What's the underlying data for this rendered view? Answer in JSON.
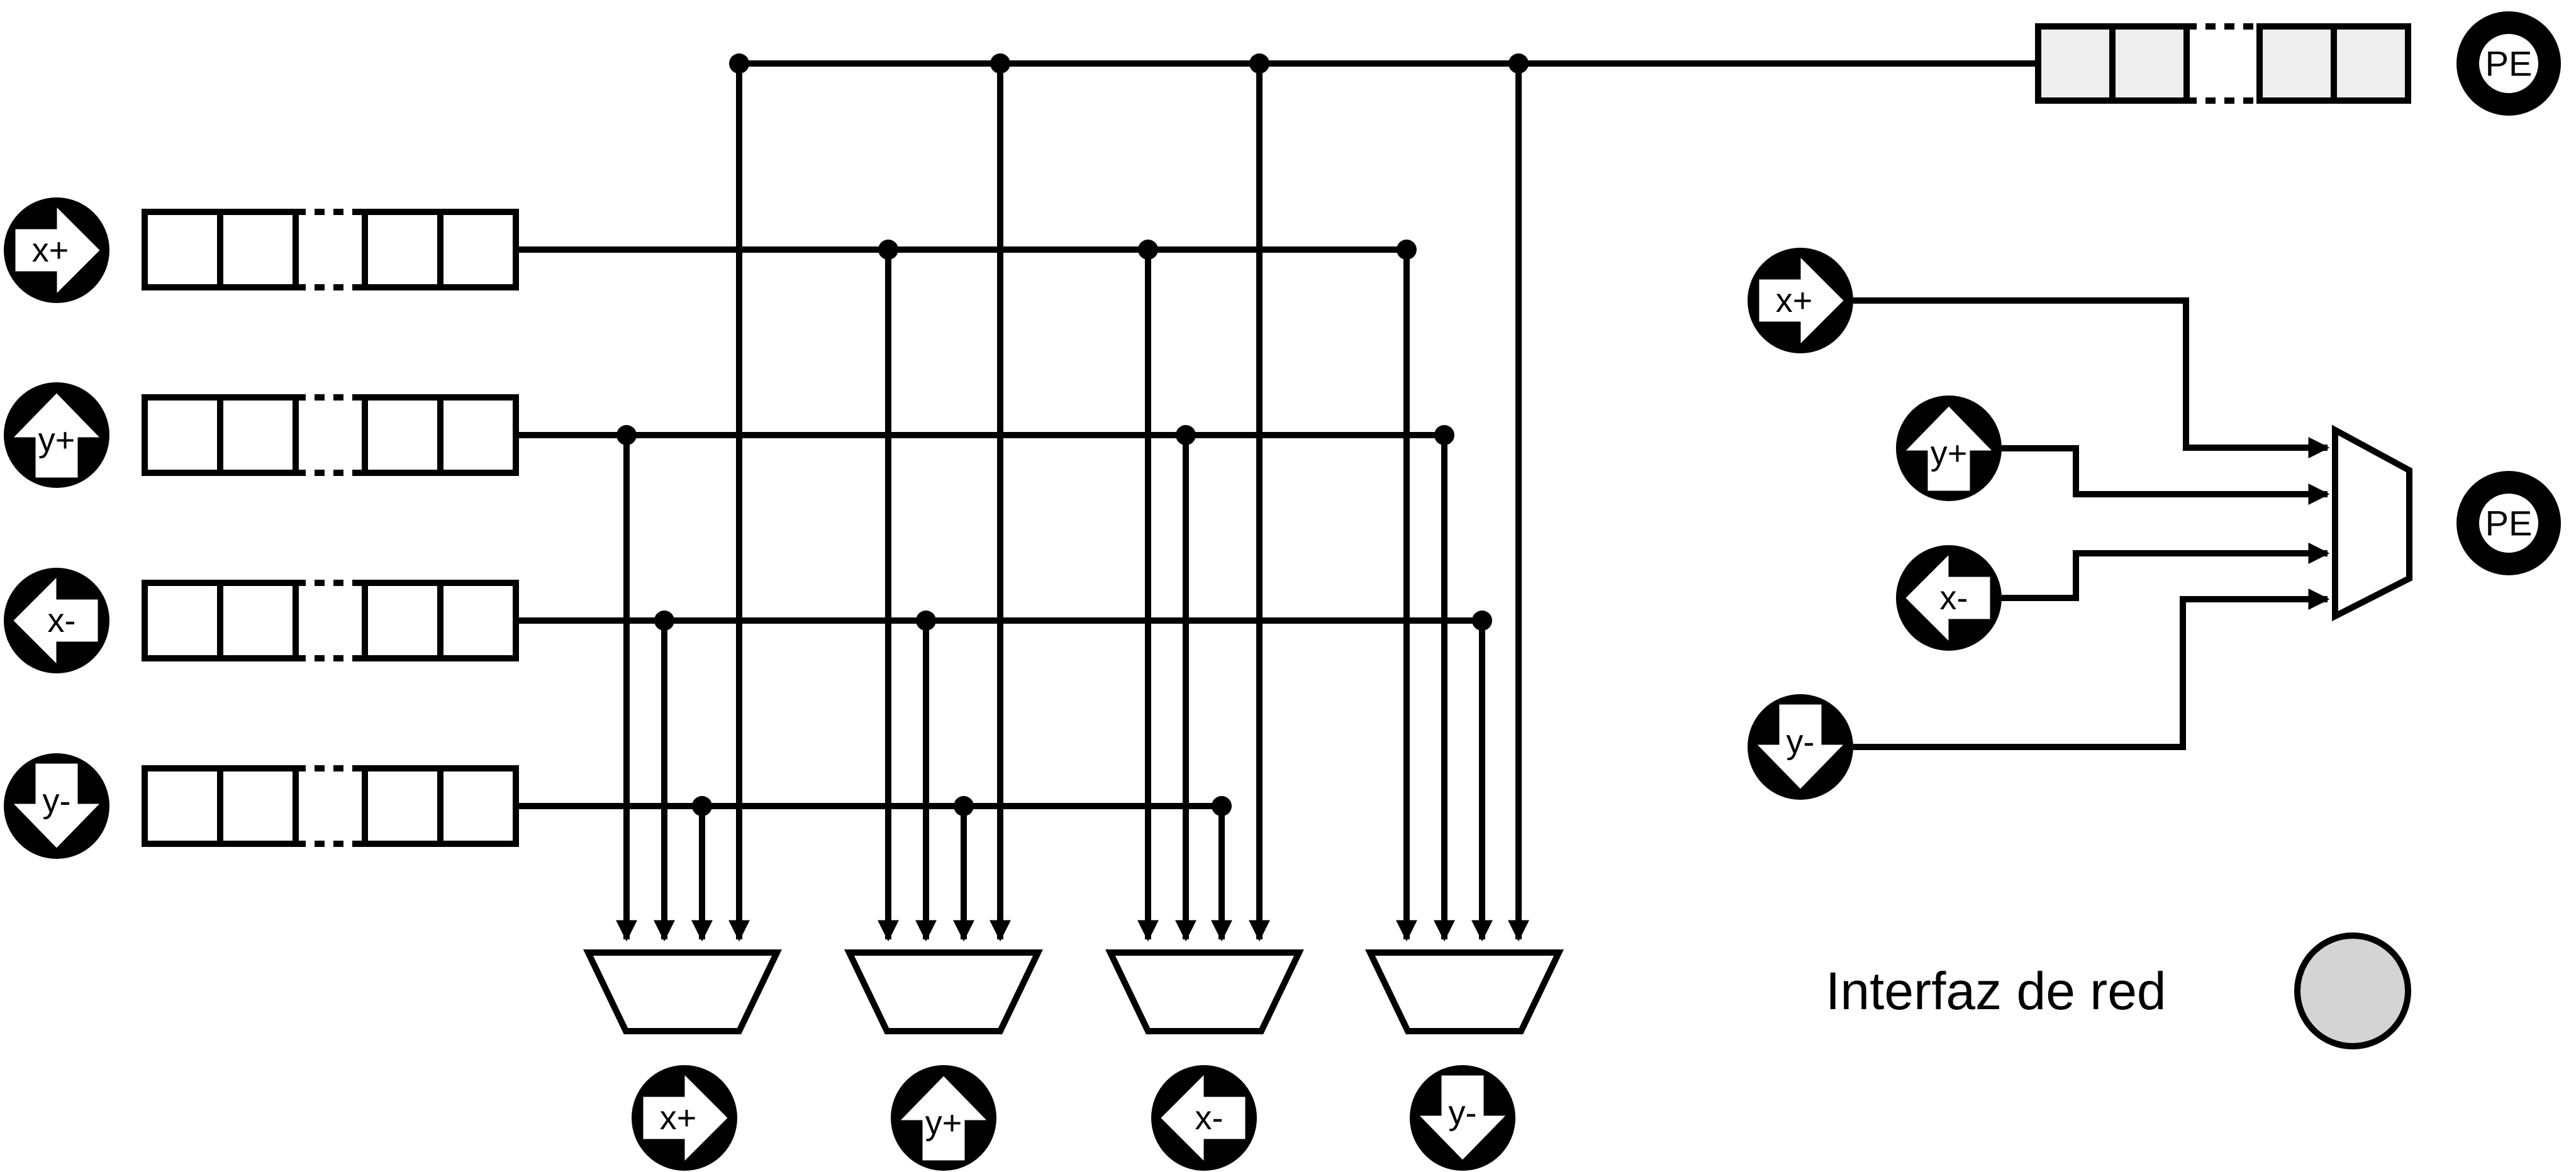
{
  "ports": {
    "x_plus": "x+",
    "y_plus": "y+",
    "x_minus": "x-",
    "y_minus": "y-"
  },
  "pe_label": "PE",
  "legend": {
    "network_interface": "Interfaz de red"
  },
  "colors": {
    "stroke": "#000000",
    "background": "#ffffff",
    "buffer_gray": "#eeeeee",
    "network_interface_fill": "#d4d4d4"
  },
  "icons": {
    "port": "direction-arrow-in-disc-icon",
    "pe": "processing-element-ring-icon",
    "network_interface": "gray-circle-icon"
  }
}
